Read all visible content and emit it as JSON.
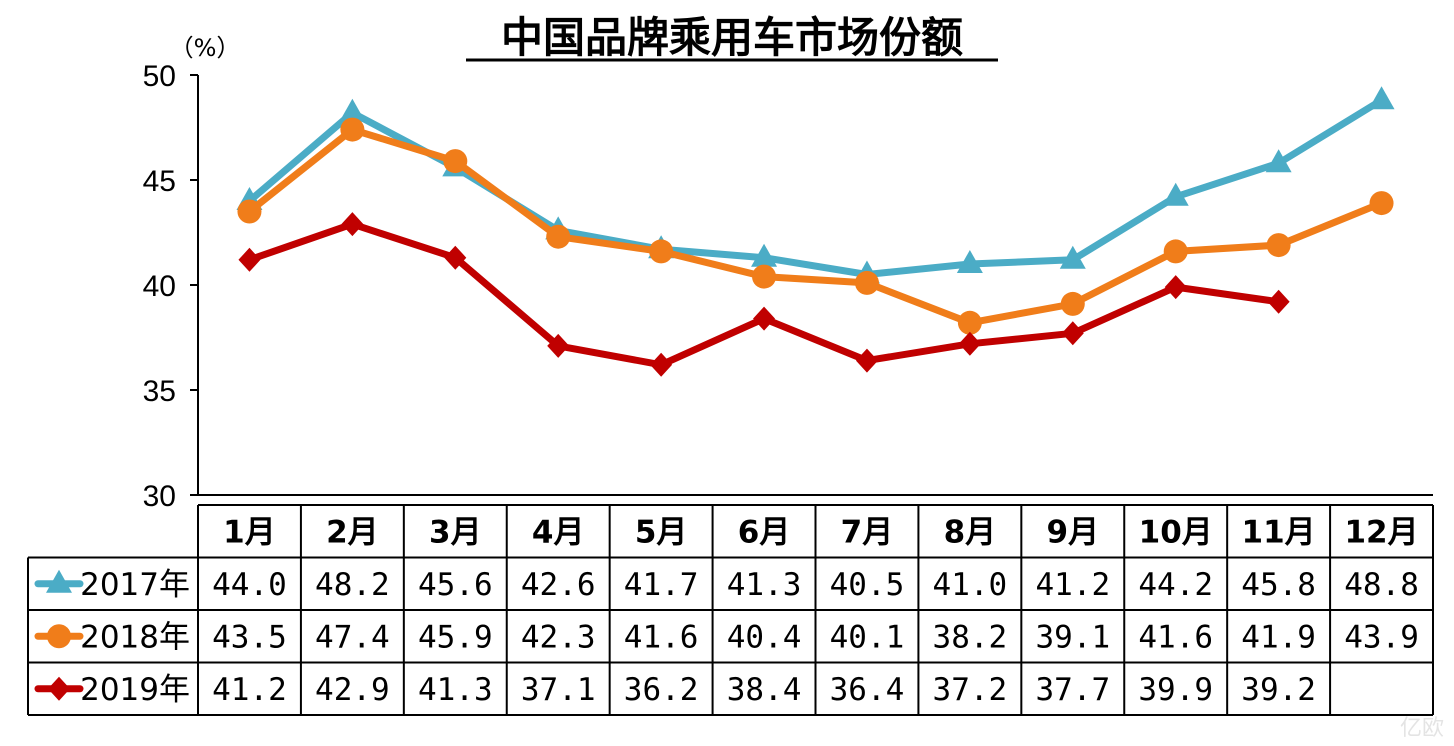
{
  "chart_data": {
    "type": "line",
    "title": "中国品牌乘用车市场份额",
    "unit_label": "（%）",
    "ylim": [
      30,
      50
    ],
    "yticks": [
      "30",
      "35",
      "40",
      "45",
      "50"
    ],
    "categories": [
      "1月",
      "2月",
      "3月",
      "4月",
      "5月",
      "6月",
      "7月",
      "8月",
      "9月",
      "10月",
      "11月",
      "12月"
    ],
    "grid": false,
    "legend_placement": "data-table-left",
    "series": [
      {
        "name": "2017年",
        "color": "#4BACC6",
        "marker": "triangle",
        "values": [
          44.0,
          48.2,
          45.6,
          42.6,
          41.7,
          41.3,
          40.5,
          41.0,
          41.2,
          44.2,
          45.8,
          48.8
        ],
        "labels": [
          "44.0",
          "48.2",
          "45.6",
          "42.6",
          "41.7",
          "41.3",
          "40.5",
          "41.0",
          "41.2",
          "44.2",
          "45.8",
          "48.8"
        ]
      },
      {
        "name": "2018年",
        "color": "#F07D1A",
        "marker": "circle",
        "values": [
          43.5,
          47.4,
          45.9,
          42.3,
          41.6,
          40.4,
          40.1,
          38.2,
          39.1,
          41.6,
          41.9,
          43.9
        ],
        "labels": [
          "43.5",
          "47.4",
          "45.9",
          "42.3",
          "41.6",
          "40.4",
          "40.1",
          "38.2",
          "39.1",
          "41.6",
          "41.9",
          "43.9"
        ]
      },
      {
        "name": "2019年",
        "color": "#C00000",
        "marker": "diamond",
        "values": [
          41.2,
          42.9,
          41.3,
          37.1,
          36.2,
          38.4,
          36.4,
          37.2,
          37.7,
          39.9,
          39.2,
          null
        ],
        "labels": [
          "41.2",
          "42.9",
          "41.3",
          "37.1",
          "36.2",
          "38.4",
          "36.4",
          "37.2",
          "37.7",
          "39.9",
          "39.2",
          ""
        ]
      }
    ]
  }
}
